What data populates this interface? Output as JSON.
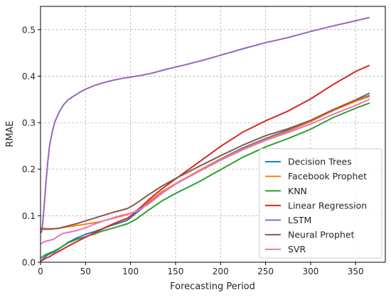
{
  "chart_data": {
    "type": "line",
    "title": "",
    "xlabel": "Forecasting Period",
    "ylabel": "RMAE",
    "xlim": [
      0,
      383
    ],
    "ylim": [
      0,
      0.55
    ],
    "xticks": [
      0,
      50,
      100,
      150,
      200,
      250,
      300,
      350
    ],
    "yticks": [
      0.0,
      0.1,
      0.2,
      0.3,
      0.4,
      0.5
    ],
    "xtick_labels": [
      "0",
      "50",
      "100",
      "150",
      "200",
      "250",
      "300",
      "350"
    ],
    "ytick_labels": [
      "0.0",
      "0.1",
      "0.2",
      "0.3",
      "0.4",
      "0.5"
    ],
    "grid": true,
    "legend_position": "lower-right",
    "series": [
      {
        "name": "Decision Trees",
        "color": "#1f77b4",
        "x": [
          1,
          5,
          10,
          15,
          20,
          30,
          40,
          50,
          60,
          70,
          80,
          90,
          97,
          105,
          120,
          135,
          150,
          175,
          200,
          225,
          250,
          275,
          300,
          325,
          350,
          365
        ],
        "y": [
          0.003,
          0.012,
          0.018,
          0.022,
          0.028,
          0.042,
          0.052,
          0.06,
          0.066,
          0.073,
          0.08,
          0.086,
          0.091,
          0.104,
          0.127,
          0.149,
          0.168,
          0.196,
          0.222,
          0.246,
          0.266,
          0.284,
          0.304,
          0.326,
          0.347,
          0.358
        ]
      },
      {
        "name": "Facebook Prophet",
        "color": "#ff7f0e",
        "x": [
          1,
          3,
          10,
          20,
          30,
          40,
          50,
          60,
          70,
          80,
          90,
          97,
          105,
          120,
          135,
          150,
          175,
          200,
          225,
          250,
          275,
          300,
          325,
          350,
          365
        ],
        "y": [
          0.074,
          0.073,
          0.072,
          0.073,
          0.076,
          0.079,
          0.082,
          0.085,
          0.089,
          0.094,
          0.099,
          0.103,
          0.109,
          0.13,
          0.152,
          0.169,
          0.196,
          0.221,
          0.244,
          0.264,
          0.282,
          0.302,
          0.326,
          0.346,
          0.356
        ]
      },
      {
        "name": "KNN",
        "color": "#2ca02c",
        "x": [
          1,
          5,
          10,
          15,
          20,
          30,
          40,
          50,
          60,
          70,
          80,
          90,
          97,
          105,
          120,
          135,
          150,
          175,
          200,
          225,
          250,
          275,
          300,
          325,
          350,
          365
        ],
        "y": [
          0.01,
          0.016,
          0.02,
          0.024,
          0.029,
          0.041,
          0.049,
          0.055,
          0.061,
          0.068,
          0.073,
          0.079,
          0.083,
          0.091,
          0.112,
          0.132,
          0.148,
          0.172,
          0.199,
          0.226,
          0.248,
          0.266,
          0.286,
          0.311,
          0.331,
          0.342
        ]
      },
      {
        "name": "Linear Regression",
        "color": "#d62728",
        "x": [
          1,
          5,
          10,
          15,
          20,
          30,
          40,
          50,
          60,
          70,
          80,
          90,
          97,
          105,
          120,
          135,
          150,
          175,
          200,
          225,
          250,
          275,
          300,
          325,
          350,
          365
        ],
        "y": [
          0.003,
          0.008,
          0.012,
          0.018,
          0.023,
          0.034,
          0.044,
          0.054,
          0.063,
          0.073,
          0.082,
          0.09,
          0.095,
          0.107,
          0.134,
          0.158,
          0.179,
          0.214,
          0.249,
          0.28,
          0.304,
          0.325,
          0.351,
          0.382,
          0.41,
          0.423
        ]
      },
      {
        "name": "LSTM",
        "color": "#9467bd",
        "x": [
          1,
          2,
          4,
          6,
          8,
          10,
          12,
          14,
          16,
          20,
          25,
          30,
          35,
          40,
          45,
          50,
          60,
          70,
          80,
          90,
          100,
          110,
          125,
          140,
          160,
          180,
          200,
          225,
          250,
          275,
          300,
          325,
          350,
          365
        ],
        "y": [
          0.064,
          0.075,
          0.12,
          0.17,
          0.215,
          0.25,
          0.27,
          0.288,
          0.302,
          0.32,
          0.337,
          0.348,
          0.355,
          0.361,
          0.367,
          0.372,
          0.38,
          0.386,
          0.391,
          0.395,
          0.398,
          0.401,
          0.407,
          0.415,
          0.424,
          0.434,
          0.445,
          0.459,
          0.472,
          0.483,
          0.496,
          0.508,
          0.519,
          0.526
        ]
      },
      {
        "name": "Neural Prophet",
        "color": "#8c564b",
        "x": [
          1,
          3,
          10,
          20,
          30,
          40,
          50,
          60,
          70,
          80,
          90,
          97,
          105,
          120,
          135,
          150,
          175,
          200,
          225,
          250,
          275,
          300,
          325,
          350,
          365
        ],
        "y": [
          0.072,
          0.071,
          0.071,
          0.073,
          0.078,
          0.083,
          0.089,
          0.095,
          0.101,
          0.107,
          0.112,
          0.116,
          0.125,
          0.145,
          0.164,
          0.18,
          0.205,
          0.229,
          0.252,
          0.272,
          0.287,
          0.305,
          0.328,
          0.349,
          0.363
        ]
      },
      {
        "name": "SVR",
        "color": "#e377c2",
        "x": [
          1,
          3,
          5,
          10,
          15,
          20,
          25,
          30,
          40,
          50,
          60,
          70,
          80,
          90,
          97,
          105,
          120,
          135,
          150,
          175,
          200,
          225,
          250,
          275,
          300,
          325,
          350,
          365
        ],
        "y": [
          0.04,
          0.043,
          0.045,
          0.047,
          0.05,
          0.057,
          0.062,
          0.064,
          0.068,
          0.074,
          0.082,
          0.089,
          0.095,
          0.101,
          0.104,
          0.108,
          0.125,
          0.148,
          0.168,
          0.194,
          0.219,
          0.242,
          0.262,
          0.279,
          0.297,
          0.318,
          0.337,
          0.35
        ]
      }
    ]
  }
}
